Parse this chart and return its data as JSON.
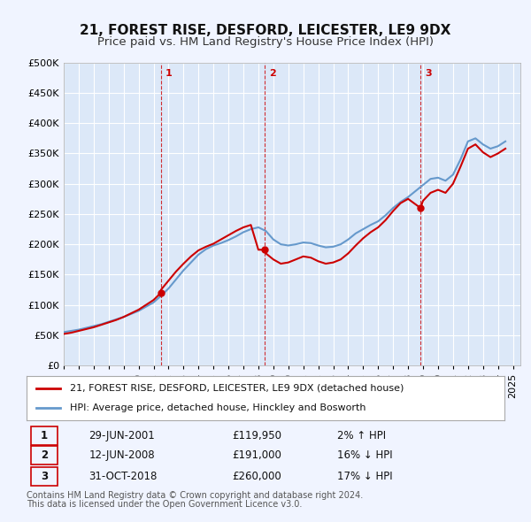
{
  "title": "21, FOREST RISE, DESFORD, LEICESTER, LE9 9DX",
  "subtitle": "Price paid vs. HM Land Registry's House Price Index (HPI)",
  "xlabel": "",
  "ylabel": "",
  "ylim": [
    0,
    500000
  ],
  "yticks": [
    0,
    50000,
    100000,
    150000,
    200000,
    250000,
    300000,
    350000,
    400000,
    450000,
    500000
  ],
  "ytick_labels": [
    "£0",
    "£50K",
    "£100K",
    "£150K",
    "£200K",
    "£250K",
    "£300K",
    "£350K",
    "£400K",
    "£450K",
    "£500K"
  ],
  "xlim_start": 1995.0,
  "xlim_end": 2025.5,
  "background_color": "#f0f4ff",
  "plot_bg_color": "#dce8f8",
  "grid_color": "#ffffff",
  "transactions": [
    {
      "num": 1,
      "date": "29-JUN-2001",
      "year": 2001.49,
      "price": 119950,
      "pct": "2%",
      "dir": "↑"
    },
    {
      "num": 2,
      "date": "12-JUN-2008",
      "year": 2008.44,
      "price": 191000,
      "pct": "16%",
      "dir": "↓"
    },
    {
      "num": 3,
      "date": "31-OCT-2018",
      "year": 2018.83,
      "price": 260000,
      "pct": "17%",
      "dir": "↓"
    }
  ],
  "hpi_line": {
    "years": [
      1995,
      1995.5,
      1996,
      1996.5,
      1997,
      1997.5,
      1998,
      1998.5,
      1999,
      1999.5,
      2000,
      2000.5,
      2001,
      2001.5,
      2002,
      2002.5,
      2003,
      2003.5,
      2004,
      2004.5,
      2005,
      2005.5,
      2006,
      2006.5,
      2007,
      2007.5,
      2008,
      2008.5,
      2009,
      2009.5,
      2010,
      2010.5,
      2011,
      2011.5,
      2012,
      2012.5,
      2013,
      2013.5,
      2014,
      2014.5,
      2015,
      2015.5,
      2016,
      2016.5,
      2017,
      2017.5,
      2018,
      2018.5,
      2019,
      2019.5,
      2020,
      2020.5,
      2021,
      2021.5,
      2022,
      2022.5,
      2023,
      2023.5,
      2024,
      2024.5
    ],
    "values": [
      55000,
      57000,
      59000,
      62000,
      65000,
      68000,
      72000,
      76000,
      80000,
      85000,
      90000,
      97000,
      104000,
      115000,
      127000,
      142000,
      157000,
      170000,
      183000,
      192000,
      198000,
      202000,
      207000,
      213000,
      220000,
      225000,
      228000,
      222000,
      208000,
      200000,
      198000,
      200000,
      203000,
      202000,
      198000,
      195000,
      196000,
      200000,
      208000,
      218000,
      225000,
      232000,
      238000,
      248000,
      260000,
      270000,
      278000,
      288000,
      298000,
      308000,
      310000,
      305000,
      315000,
      340000,
      370000,
      375000,
      365000,
      358000,
      362000,
      370000
    ]
  },
  "price_line": {
    "years": [
      1995,
      1995.5,
      1996,
      1996.5,
      1997,
      1997.5,
      1998,
      1998.5,
      1999,
      1999.5,
      2000,
      2000.5,
      2001,
      2001.49,
      2001.5,
      2002,
      2002.5,
      2003,
      2003.5,
      2004,
      2004.5,
      2005,
      2005.5,
      2006,
      2006.5,
      2007,
      2007.5,
      2008,
      2008.44,
      2008.5,
      2009,
      2009.5,
      2010,
      2010.5,
      2011,
      2011.5,
      2012,
      2012.5,
      2013,
      2013.5,
      2014,
      2014.5,
      2015,
      2015.5,
      2016,
      2016.5,
      2017,
      2017.5,
      2018,
      2018.83,
      2019,
      2019.5,
      2020,
      2020.5,
      2021,
      2021.5,
      2022,
      2022.5,
      2023,
      2023.5,
      2024,
      2024.5
    ],
    "values": [
      52000,
      54000,
      57000,
      60000,
      63000,
      67000,
      71000,
      75000,
      80000,
      86000,
      92000,
      100000,
      108000,
      119950,
      125000,
      140000,
      155000,
      168000,
      180000,
      190000,
      196000,
      201000,
      208000,
      215000,
      222000,
      228000,
      232000,
      191000,
      191000,
      185000,
      175000,
      168000,
      170000,
      175000,
      180000,
      178000,
      172000,
      168000,
      170000,
      175000,
      185000,
      198000,
      210000,
      220000,
      228000,
      240000,
      255000,
      268000,
      275000,
      260000,
      272000,
      285000,
      290000,
      285000,
      300000,
      328000,
      358000,
      365000,
      352000,
      344000,
      350000,
      358000
    ]
  },
  "red_color": "#cc0000",
  "blue_color": "#6699cc",
  "vline_color": "#cc0000",
  "legend_label_red": "21, FOREST RISE, DESFORD, LEICESTER, LE9 9DX (detached house)",
  "legend_label_blue": "HPI: Average price, detached house, Hinckley and Bosworth",
  "footer_line1": "Contains HM Land Registry data © Crown copyright and database right 2024.",
  "footer_line2": "This data is licensed under the Open Government Licence v3.0.",
  "title_fontsize": 11,
  "subtitle_fontsize": 9.5,
  "tick_fontsize": 8,
  "legend_fontsize": 8,
  "table_fontsize": 8.5,
  "footer_fontsize": 7
}
